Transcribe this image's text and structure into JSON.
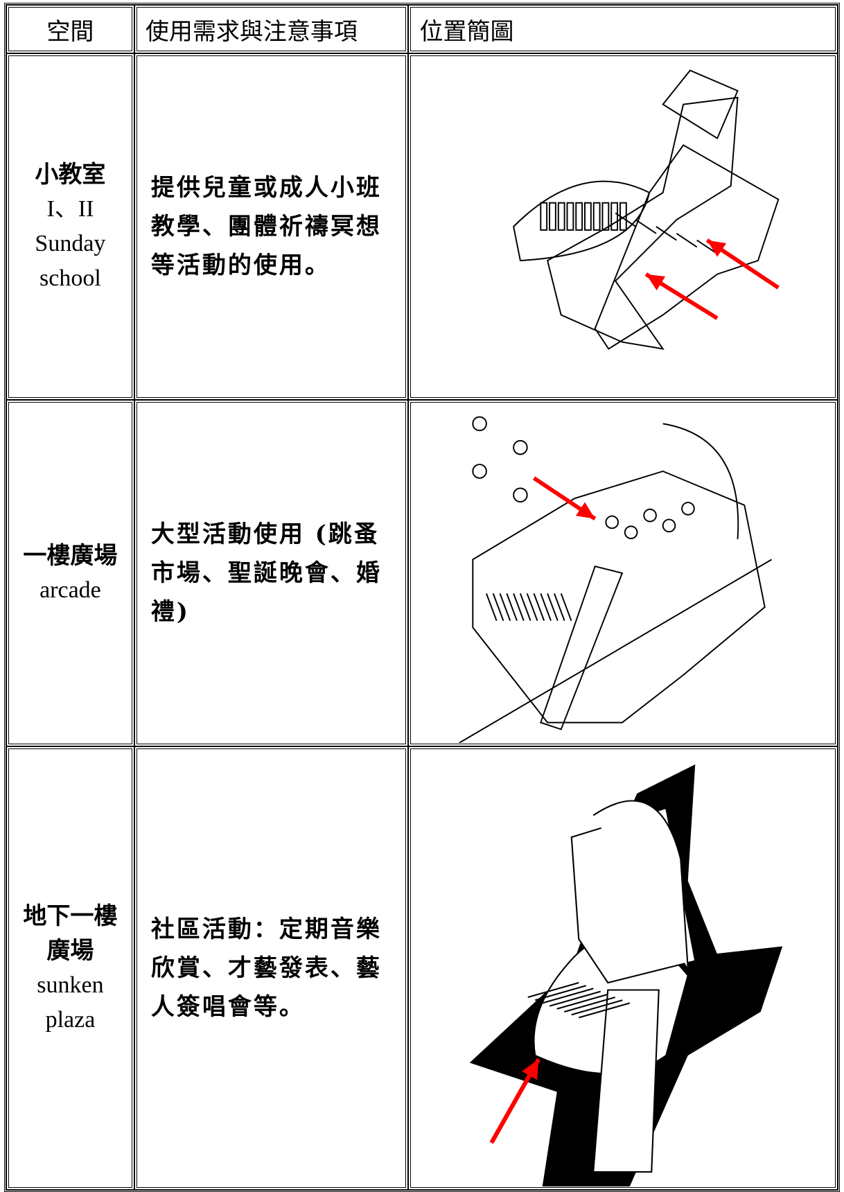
{
  "table": {
    "header": [
      "空間",
      "使用需求與注意事項",
      "位置簡圖"
    ],
    "rows": [
      {
        "space": [
          "小教室",
          "I、II",
          "Sunday",
          "school"
        ],
        "description": [
          "提供兒童或成人小班",
          "教學、團體祈禱冥想",
          "等活動的使用。"
        ]
      },
      {
        "space": [
          "一樓廣場",
          "arcade"
        ],
        "description": [
          "大型活動使用 (跳蚤",
          "市場、聖誕晚會、婚",
          "禮)"
        ]
      },
      {
        "space": [
          "地下一樓",
          "廣場",
          "sunken",
          "plaza"
        ],
        "description": [
          "社區活動：定期音樂",
          "欣賞、才藝發表、藝",
          "人簽唱會等。"
        ]
      }
    ]
  }
}
